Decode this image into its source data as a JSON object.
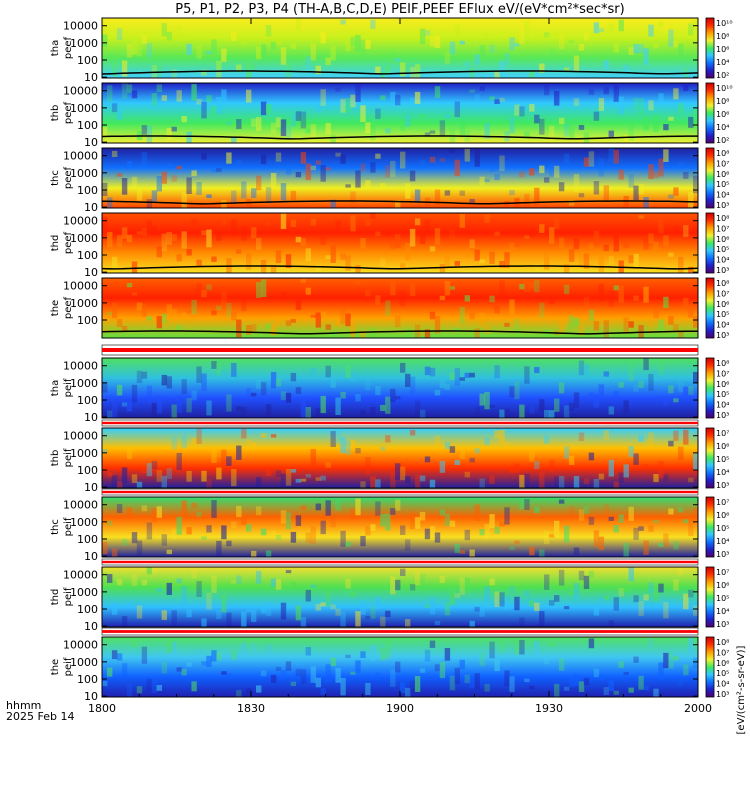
{
  "chart_data": {
    "type": "heatmap",
    "title": "P5, P1, P2, P3, P4 (TH-A,B,C,D,E) PEIF,PEEF EFlux eV/(eV*cm²*sec*sr)",
    "time_axis": {
      "label_line1": "hhmm",
      "label_line2": "2025 Feb 14",
      "ticks": [
        "1800",
        "1830",
        "1900",
        "1930",
        "2000"
      ],
      "minor_ticks_per_major": 3
    },
    "colorbar_label": "[eV/(cm²-s-sr-eV)]",
    "panels": [
      {
        "name": "tha peef",
        "label_lines": [
          "tha",
          "peef"
        ],
        "yticks": [
          "10000",
          "1000",
          "100",
          "10"
        ],
        "colorbar_ticks": [
          "10¹⁰",
          "10⁸",
          "10⁶",
          "10⁴",
          "10²"
        ],
        "dominant_colors": [
          "#f8ec1c",
          "#c8f01c",
          "#58e858",
          "#40d0ff"
        ],
        "boundary_line": true
      },
      {
        "name": "thb peef",
        "label_lines": [
          "thb",
          "peef"
        ],
        "yticks": [
          "10000",
          "1000",
          "100",
          "10"
        ],
        "colorbar_ticks": [
          "10¹⁰",
          "10⁸",
          "10⁶",
          "10⁴",
          "10²"
        ],
        "dominant_colors": [
          "#2020c8",
          "#30c8ff",
          "#40e860",
          "#f0f030"
        ],
        "boundary_line": true
      },
      {
        "name": "thc peef",
        "label_lines": [
          "thc",
          "peef"
        ],
        "yticks": [
          "10000",
          "1000",
          "100",
          "10"
        ],
        "colorbar_ticks": [
          "10⁸",
          "10⁷",
          "10⁶",
          "10⁵",
          "10⁴",
          "10³"
        ],
        "dominant_colors": [
          "#2020a0",
          "#1070ff",
          "#f0f020",
          "#ff4000"
        ],
        "boundary_line": true
      },
      {
        "name": "thd peef",
        "label_lines": [
          "thd",
          "peef"
        ],
        "yticks": [
          "10000",
          "1000",
          "100",
          "10"
        ],
        "colorbar_ticks": [
          "10⁸",
          "10⁷",
          "10⁶",
          "10⁵",
          "10⁴",
          "10³"
        ],
        "dominant_colors": [
          "#ff5000",
          "#ff2000",
          "#ff8c00",
          "#f8e020"
        ],
        "boundary_line": true
      },
      {
        "name": "the peef",
        "label_lines": [
          "the",
          "peef"
        ],
        "yticks": [
          "10000",
          "1000",
          "100"
        ],
        "colorbar_ticks": [
          "10⁸",
          "10⁷",
          "10⁶",
          "10⁵",
          "10⁴",
          "10³"
        ],
        "dominant_colors": [
          "#ff6000",
          "#ff2000",
          "#ffa000",
          "#60e040"
        ],
        "boundary_line": true
      },
      {
        "name": "tha peif",
        "label_lines": [
          "tha",
          "peif"
        ],
        "yticks": [
          "10000",
          "1000",
          "100",
          "10"
        ],
        "colorbar_ticks": [
          "10⁸",
          "10⁷",
          "10⁶",
          "10⁵",
          "10⁴",
          "10³"
        ],
        "dominant_colors": [
          "#50e060",
          "#30c0e0",
          "#2050ff",
          "#2020a0"
        ],
        "boundary_line": false
      },
      {
        "name": "thb peif",
        "label_lines": [
          "thb",
          "peif"
        ],
        "yticks": [
          "10000",
          "1000",
          "100",
          "10"
        ],
        "colorbar_ticks": [
          "10⁷",
          "10⁶",
          "10⁵",
          "10⁴",
          "10³"
        ],
        "dominant_colors": [
          "#30d0ff",
          "#ffc000",
          "#ff3000",
          "#2020a0"
        ],
        "boundary_line": false
      },
      {
        "name": "thc peif",
        "label_lines": [
          "thc",
          "peif"
        ],
        "yticks": [
          "10000",
          "1000",
          "100",
          "10"
        ],
        "colorbar_ticks": [
          "10⁷",
          "10⁶",
          "10⁵",
          "10⁴",
          "10³"
        ],
        "dominant_colors": [
          "#30e070",
          "#ff6000",
          "#f8e020",
          "#2020a0"
        ],
        "boundary_line": false
      },
      {
        "name": "thd peif",
        "label_lines": [
          "thd",
          "peif"
        ],
        "yticks": [
          "10000",
          "1000",
          "100",
          "10"
        ],
        "colorbar_ticks": [
          "10⁷",
          "10⁶",
          "10⁵",
          "10⁴",
          "10³"
        ],
        "dominant_colors": [
          "#f0e030",
          "#50e050",
          "#30c0ff",
          "#2020b0"
        ],
        "boundary_line": false
      },
      {
        "name": "the peif",
        "label_lines": [
          "the",
          "peif"
        ],
        "yticks": [
          "10000",
          "1000",
          "100",
          "10"
        ],
        "colorbar_ticks": [
          "10⁸",
          "10⁷",
          "10⁶",
          "10⁵",
          "10⁴",
          "10³"
        ],
        "dominant_colors": [
          "#50e060",
          "#40c8f0",
          "#1060ff",
          "#2020b0"
        ],
        "boundary_line": false
      }
    ],
    "separator_bands": [
      {
        "after_panel": "the peef",
        "color": "#ff0000"
      },
      {
        "after_panel": "tha peif",
        "color": "#ff0000"
      },
      {
        "after_panel": "thb peif",
        "color": "#ff0000"
      },
      {
        "after_panel": "thc peif",
        "color": "#ff0000"
      },
      {
        "after_panel": "thd peif",
        "color": "#ff0000"
      }
    ],
    "colormap": [
      "#50006e",
      "#2020c8",
      "#1070ff",
      "#30c8ff",
      "#40e860",
      "#f0f030",
      "#ffa000",
      "#ff3000",
      "#d00000"
    ]
  }
}
